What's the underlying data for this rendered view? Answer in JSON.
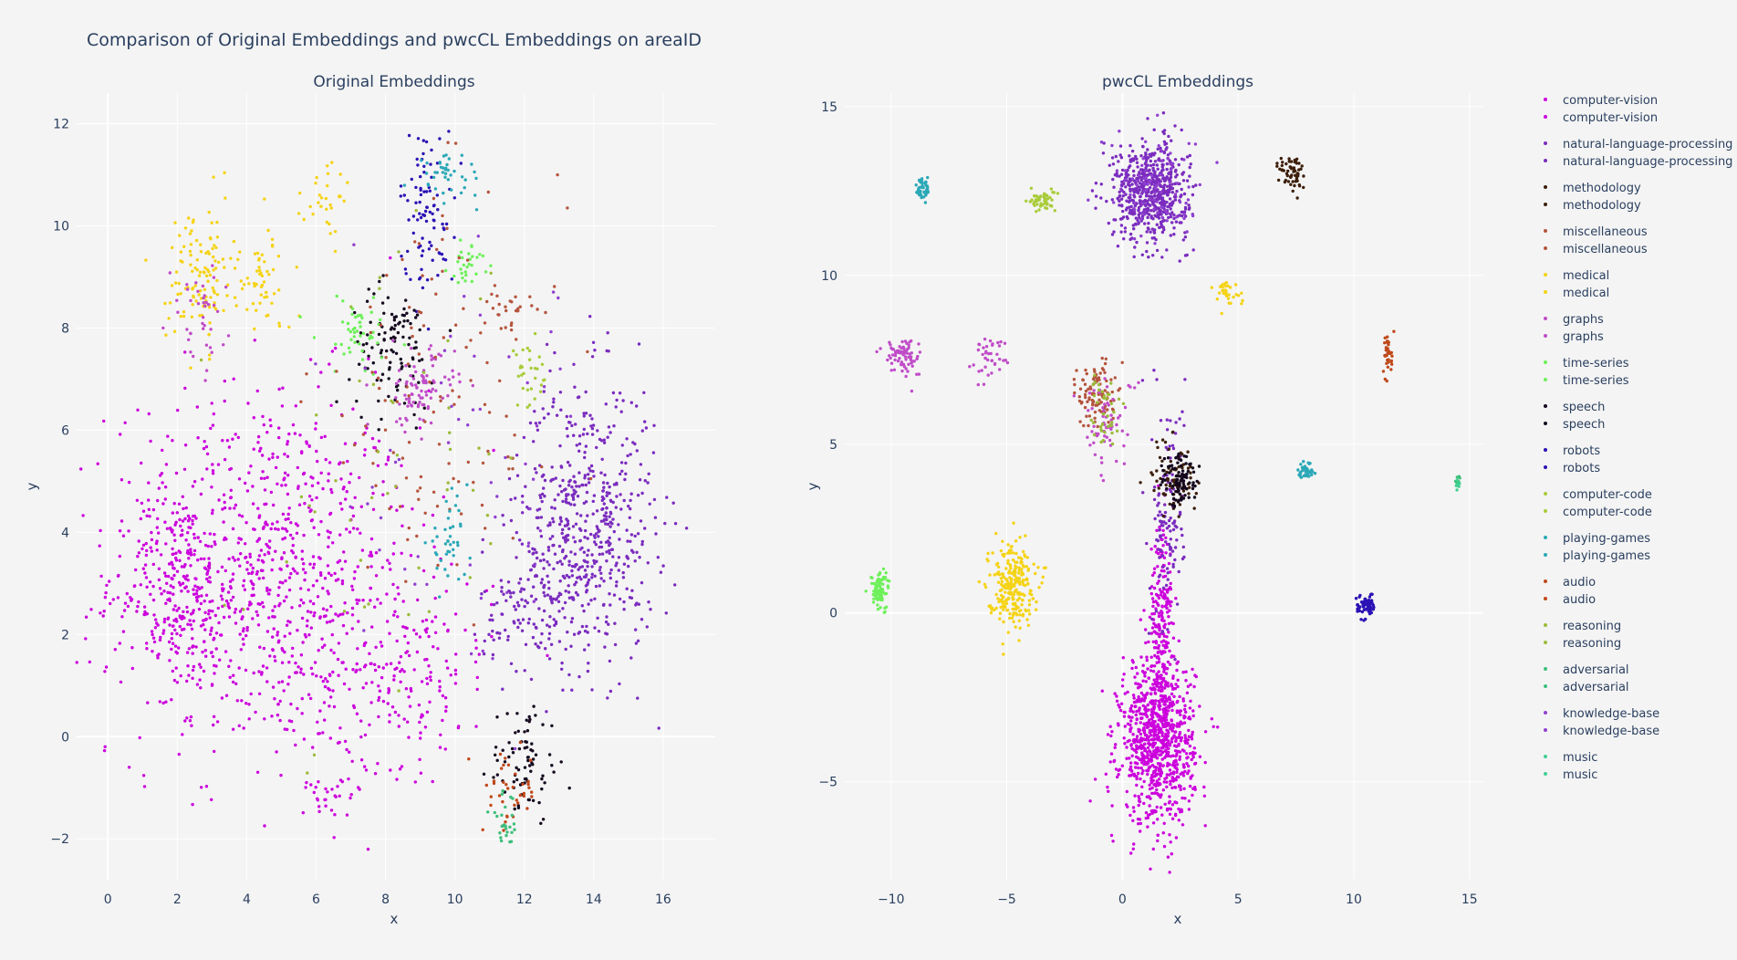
{
  "chart_data": {
    "title": "Comparison of Original Embeddings and pwcCL Embeddings on areaID",
    "type": "scatter",
    "panels": [
      {
        "title": "Original Embeddings",
        "xlabel": "x",
        "ylabel": "y",
        "xlim": [
          -0.9,
          17.5
        ],
        "ylim": [
          -2.8,
          12.6
        ],
        "xticks": [
          0,
          2,
          4,
          6,
          8,
          10,
          12,
          14,
          16
        ],
        "yticks": [
          -2,
          0,
          2,
          4,
          6,
          8,
          10,
          12
        ],
        "tick_labels_x": [
          "0",
          "2",
          "4",
          "6",
          "8",
          "10",
          "12",
          "14",
          "16"
        ],
        "tick_labels_y": [
          "−2",
          "0",
          "2",
          "4",
          "6",
          "8",
          "10",
          "12"
        ],
        "clusters": [
          {
            "series": "computer-vision",
            "cx": 4.5,
            "cy": 3.2,
            "sx": 2.2,
            "sy": 1.8,
            "n": 900
          },
          {
            "series": "computer-vision",
            "cx": 2.0,
            "cy": 2.9,
            "sx": 0.7,
            "sy": 1.0,
            "n": 200
          },
          {
            "series": "computer-vision",
            "cx": 8.5,
            "cy": 1.2,
            "sx": 1.3,
            "sy": 0.9,
            "n": 180
          },
          {
            "series": "computer-vision",
            "cx": 6.5,
            "cy": -1.0,
            "sx": 0.5,
            "sy": 0.2,
            "n": 30
          },
          {
            "series": "natural-language-processing",
            "cx": 13.8,
            "cy": 4.2,
            "sx": 1.0,
            "sy": 1.4,
            "n": 550
          },
          {
            "series": "natural-language-processing",
            "cx": 12.2,
            "cy": 2.5,
            "sx": 0.7,
            "sy": 0.6,
            "n": 120
          },
          {
            "series": "robots",
            "cx": 9.2,
            "cy": 10.3,
            "sx": 0.4,
            "sy": 0.8,
            "n": 90
          },
          {
            "series": "speech",
            "cx": 8.2,
            "cy": 7.6,
            "sx": 0.6,
            "sy": 0.6,
            "n": 110
          },
          {
            "series": "speech",
            "cx": 12.0,
            "cy": -0.5,
            "sx": 0.5,
            "sy": 0.6,
            "n": 80
          },
          {
            "series": "medical",
            "cx": 2.7,
            "cy": 9.0,
            "sx": 0.5,
            "sy": 0.7,
            "n": 120
          },
          {
            "series": "medical",
            "cx": 4.5,
            "cy": 8.9,
            "sx": 0.4,
            "sy": 0.5,
            "n": 50
          },
          {
            "series": "medical",
            "cx": 6.4,
            "cy": 10.5,
            "sx": 0.4,
            "sy": 0.4,
            "n": 30
          },
          {
            "series": "graphs",
            "cx": 9.0,
            "cy": 6.8,
            "sx": 0.5,
            "sy": 0.4,
            "n": 90
          },
          {
            "series": "graphs",
            "cx": 2.6,
            "cy": 8.2,
            "sx": 0.4,
            "sy": 0.5,
            "n": 40
          },
          {
            "series": "time-series",
            "cx": 10.4,
            "cy": 9.3,
            "sx": 0.3,
            "sy": 0.2,
            "n": 30
          },
          {
            "series": "time-series",
            "cx": 7.2,
            "cy": 7.9,
            "sx": 0.6,
            "sy": 0.4,
            "n": 50
          },
          {
            "series": "miscellaneous",
            "cx": 9.5,
            "cy": 6.5,
            "sx": 1.8,
            "sy": 2.0,
            "n": 120
          },
          {
            "series": "miscellaneous",
            "cx": 11.5,
            "cy": 8.4,
            "sx": 0.3,
            "sy": 0.2,
            "n": 25
          },
          {
            "series": "playing-games",
            "cx": 9.8,
            "cy": 3.8,
            "sx": 0.3,
            "sy": 0.4,
            "n": 40
          },
          {
            "series": "playing-games",
            "cx": 9.8,
            "cy": 11.0,
            "sx": 0.5,
            "sy": 0.2,
            "n": 40
          },
          {
            "series": "audio",
            "cx": 11.6,
            "cy": -1.1,
            "sx": 0.4,
            "sy": 0.4,
            "n": 40
          },
          {
            "series": "adversarial",
            "cx": 11.4,
            "cy": -1.7,
            "sx": 0.2,
            "sy": 0.3,
            "n": 25
          },
          {
            "series": "computer-code",
            "cx": 12.2,
            "cy": 7.0,
            "sx": 0.3,
            "sy": 0.3,
            "n": 30
          },
          {
            "series": "reasoning",
            "cx": 8.0,
            "cy": 5.0,
            "sx": 2.0,
            "sy": 2.5,
            "n": 50
          },
          {
            "series": "knowledge-base",
            "cx": 11.0,
            "cy": 5.0,
            "sx": 2.0,
            "sy": 2.0,
            "n": 60
          }
        ]
      },
      {
        "title": "pwcCL Embeddings",
        "xlabel": "x",
        "ylabel": "y",
        "xlim": [
          -12.0,
          15.6
        ],
        "ylim": [
          -7.9,
          15.4
        ],
        "xticks": [
          -10,
          -5,
          0,
          5,
          10,
          15
        ],
        "yticks": [
          -5,
          0,
          5,
          10,
          15
        ],
        "tick_labels_x": [
          "−10",
          "−5",
          "0",
          "5",
          "10",
          "15"
        ],
        "tick_labels_y": [
          "−5",
          "0",
          "5",
          "10",
          "15"
        ],
        "clusters": [
          {
            "series": "computer-vision",
            "cx": 1.5,
            "cy": -3.8,
            "sx": 0.8,
            "sy": 1.2,
            "n": 900
          },
          {
            "series": "computer-vision",
            "cx": 1.7,
            "cy": -0.3,
            "sx": 0.25,
            "sy": 1.5,
            "n": 200
          },
          {
            "series": "natural-language-processing",
            "cx": 1.2,
            "cy": 12.5,
            "sx": 0.8,
            "sy": 0.7,
            "n": 600
          },
          {
            "series": "natural-language-processing",
            "cx": 2.0,
            "cy": 3.0,
            "sx": 0.35,
            "sy": 1.8,
            "n": 120
          },
          {
            "series": "methodology",
            "cx": 7.4,
            "cy": 13.0,
            "sx": 0.3,
            "sy": 0.3,
            "n": 60
          },
          {
            "series": "methodology",
            "cx": 2.2,
            "cy": 4.0,
            "sx": 0.5,
            "sy": 0.6,
            "n": 80
          },
          {
            "series": "miscellaneous",
            "cx": -1.1,
            "cy": 6.5,
            "sx": 0.4,
            "sy": 0.5,
            "n": 100
          },
          {
            "series": "medical",
            "cx": -4.8,
            "cy": 0.9,
            "sx": 0.5,
            "sy": 0.6,
            "n": 250
          },
          {
            "series": "medical",
            "cx": 4.5,
            "cy": 9.5,
            "sx": 0.3,
            "sy": 0.2,
            "n": 30
          },
          {
            "series": "graphs",
            "cx": -9.5,
            "cy": 7.6,
            "sx": 0.4,
            "sy": 0.3,
            "n": 80
          },
          {
            "series": "graphs",
            "cx": -5.8,
            "cy": 7.6,
            "sx": 0.4,
            "sy": 0.3,
            "n": 40
          },
          {
            "series": "graphs",
            "cx": -0.6,
            "cy": 5.6,
            "sx": 0.6,
            "sy": 0.7,
            "n": 60
          },
          {
            "series": "time-series",
            "cx": -10.5,
            "cy": 0.7,
            "sx": 0.2,
            "sy": 0.3,
            "n": 80
          },
          {
            "series": "speech",
            "cx": 2.5,
            "cy": 3.9,
            "sx": 0.4,
            "sy": 0.4,
            "n": 90
          },
          {
            "series": "robots",
            "cx": 10.5,
            "cy": 0.2,
            "sx": 0.2,
            "sy": 0.2,
            "n": 60
          },
          {
            "series": "computer-code",
            "cx": -3.5,
            "cy": 12.2,
            "sx": 0.3,
            "sy": 0.15,
            "n": 50
          },
          {
            "series": "playing-games",
            "cx": -8.6,
            "cy": 12.6,
            "sx": 0.15,
            "sy": 0.2,
            "n": 40
          },
          {
            "series": "playing-games",
            "cx": 8.0,
            "cy": 4.2,
            "sx": 0.2,
            "sy": 0.15,
            "n": 40
          },
          {
            "series": "audio",
            "cx": 11.5,
            "cy": 7.7,
            "sx": 0.1,
            "sy": 0.3,
            "n": 35
          },
          {
            "series": "reasoning",
            "cx": -0.8,
            "cy": 6.0,
            "sx": 0.4,
            "sy": 0.6,
            "n": 40
          },
          {
            "series": "adversarial",
            "cx": 14.5,
            "cy": 3.9,
            "sx": 0.05,
            "sy": 0.1,
            "n": 12
          },
          {
            "series": "knowledge-base",
            "cx": 1.5,
            "cy": 12.5,
            "sx": 1.0,
            "sy": 0.8,
            "n": 80
          },
          {
            "series": "music",
            "cx": 14.5,
            "cy": 3.85,
            "sx": 0.05,
            "sy": 0.08,
            "n": 8
          }
        ]
      }
    ],
    "legend": {
      "placement": "right",
      "entries": [
        {
          "name": "computer-vision",
          "color": "#cc00dd"
        },
        {
          "name": "computer-vision",
          "color": "#cc00dd"
        },
        {
          "name": "natural-language-processing",
          "color": "#7b2cbf"
        },
        {
          "name": "natural-language-processing",
          "color": "#7b2cbf"
        },
        {
          "name": "methodology",
          "color": "#3d1f0b"
        },
        {
          "name": "methodology",
          "color": "#3d1f0b"
        },
        {
          "name": "miscellaneous",
          "color": "#b5553e"
        },
        {
          "name": "miscellaneous",
          "color": "#b5553e"
        },
        {
          "name": "medical",
          "color": "#f5d315"
        },
        {
          "name": "medical",
          "color": "#f5d315"
        },
        {
          "name": "graphs",
          "color": "#c04cc8"
        },
        {
          "name": "graphs",
          "color": "#c04cc8"
        },
        {
          "name": "time-series",
          "color": "#6ef05a"
        },
        {
          "name": "time-series",
          "color": "#6ef05a"
        },
        {
          "name": "speech",
          "color": "#14081e"
        },
        {
          "name": "speech",
          "color": "#14081e"
        },
        {
          "name": "robots",
          "color": "#2b12b5"
        },
        {
          "name": "robots",
          "color": "#2b12b5"
        },
        {
          "name": "computer-code",
          "color": "#a9cc3a"
        },
        {
          "name": "computer-code",
          "color": "#a9cc3a"
        },
        {
          "name": "playing-games",
          "color": "#2ba8b8"
        },
        {
          "name": "playing-games",
          "color": "#2ba8b8"
        },
        {
          "name": "audio",
          "color": "#c0481a"
        },
        {
          "name": "audio",
          "color": "#c0481a"
        },
        {
          "name": "reasoning",
          "color": "#9cbb3a"
        },
        {
          "name": "reasoning",
          "color": "#9cbb3a"
        },
        {
          "name": "adversarial",
          "color": "#3dbf7a"
        },
        {
          "name": "adversarial",
          "color": "#3dbf7a"
        },
        {
          "name": "knowledge-base",
          "color": "#9040d0"
        },
        {
          "name": "knowledge-base",
          "color": "#9040d0"
        },
        {
          "name": "music",
          "color": "#40d090"
        },
        {
          "name": "music",
          "color": "#40d090"
        }
      ]
    },
    "grid": true
  }
}
